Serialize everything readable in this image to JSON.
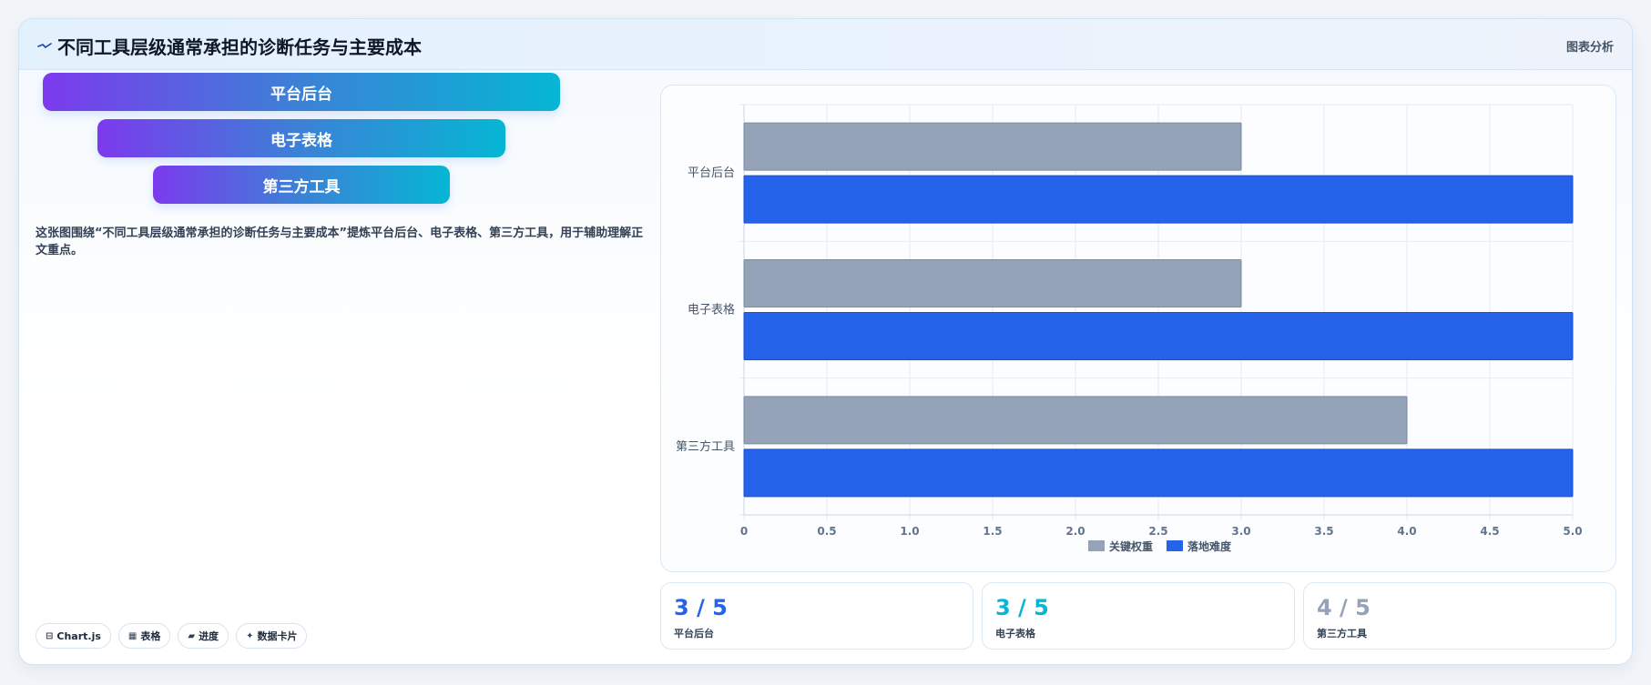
{
  "header": {
    "title": "不同工具层级通常承担的诊断任务与主要成本",
    "action": "图表分析",
    "icon": "trend-line-icon"
  },
  "funnel": [
    {
      "label": "平台后台"
    },
    {
      "label": "电子表格"
    },
    {
      "label": "第三方工具"
    }
  ],
  "description": "这张图围绕“不同工具层级通常承担的诊断任务与主要成本”提炼平台后台、电子表格、第三方工具，用于辅助理解正文重点。",
  "tags": [
    {
      "icon": "code-icon",
      "glyph": "⊟",
      "label": "Chart.js"
    },
    {
      "icon": "table-icon",
      "glyph": "▦",
      "label": "表格"
    },
    {
      "icon": "progress-icon",
      "glyph": "▰",
      "label": "进度"
    },
    {
      "icon": "sparkle-icon",
      "glyph": "✦",
      "label": "数据卡片"
    }
  ],
  "colors": {
    "series1": "#94a3b8",
    "series2": "#2563eb",
    "stat1": "#2563eb",
    "stat2": "#06b6d4",
    "stat3": "#94a3b8"
  },
  "chart_data": {
    "type": "bar",
    "orientation": "horizontal",
    "categories": [
      "平台后台",
      "电子表格",
      "第三方工具"
    ],
    "series": [
      {
        "name": "关键权重",
        "values": [
          3,
          3,
          4
        ]
      },
      {
        "name": "落地难度",
        "values": [
          5,
          5,
          5
        ]
      }
    ],
    "xlim": [
      0,
      5
    ],
    "xticks": [
      "0",
      "0.5",
      "1.0",
      "1.5",
      "2.0",
      "2.5",
      "3.0",
      "3.5",
      "4.0",
      "4.5",
      "5.0"
    ],
    "grid": true,
    "legend": "bottom"
  },
  "stats": [
    {
      "value": "3 / 5",
      "label": "平台后台"
    },
    {
      "value": "3 / 5",
      "label": "电子表格"
    },
    {
      "value": "4 / 5",
      "label": "第三方工具"
    }
  ]
}
